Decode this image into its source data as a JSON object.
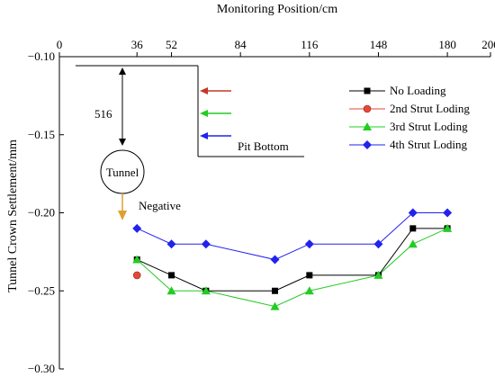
{
  "chart_data": {
    "type": "line",
    "xlabel": "Monitoring Position/cm",
    "ylabel": "Tunnel Crown Settlement/mm",
    "x_axis_position": "top",
    "xlim": [
      0,
      200
    ],
    "ylim": [
      -0.3,
      -0.1
    ],
    "y_inverted": true,
    "x_ticks": [
      0,
      36,
      52,
      84,
      116,
      148,
      180,
      200
    ],
    "x_tick_labels": [
      "0",
      "36",
      "52",
      "84",
      "116",
      "148",
      "180",
      "200"
    ],
    "y_ticks": [
      -0.1,
      -0.15,
      -0.2,
      -0.25,
      -0.3
    ],
    "y_tick_labels": [
      "−0.10",
      "−0.15",
      "−0.20",
      "−0.25",
      "−0.30"
    ],
    "grid": false,
    "legend_position": "right",
    "series": [
      {
        "name": "No Loading",
        "color": "#000000",
        "marker": "square",
        "x": [
          36,
          52,
          68,
          100,
          116,
          148,
          164,
          180
        ],
        "y": [
          -0.23,
          -0.24,
          -0.25,
          -0.25,
          -0.24,
          -0.24,
          -0.21,
          -0.21
        ]
      },
      {
        "name": "2nd Strut Loding",
        "color": "#e8463a",
        "marker": "circle",
        "x": [
          36
        ],
        "y": [
          -0.24
        ]
      },
      {
        "name": "3rd Strut Loding",
        "color": "#22cc22",
        "marker": "triangle",
        "x": [
          36,
          52,
          68,
          100,
          116,
          148,
          164,
          180
        ],
        "y": [
          -0.23,
          -0.25,
          -0.25,
          -0.26,
          -0.25,
          -0.24,
          -0.22,
          -0.21
        ]
      },
      {
        "name": "4th Strut Loding",
        "color": "#2222ee",
        "marker": "diamond",
        "x": [
          36,
          52,
          68,
          100,
          116,
          148,
          164,
          180
        ],
        "y": [
          -0.21,
          -0.22,
          -0.22,
          -0.23,
          -0.22,
          -0.22,
          -0.2,
          -0.2
        ]
      }
    ],
    "annotations": {
      "depth_label": "516",
      "pit_bottom_label": "Pit Bottom",
      "tunnel_label": "Tunnel",
      "negative_label": "Negative",
      "strut_arrow_colors": [
        "#c0392b",
        "#22cc22",
        "#2222ee"
      ],
      "negative_arrow_color": "#e0a030"
    }
  }
}
